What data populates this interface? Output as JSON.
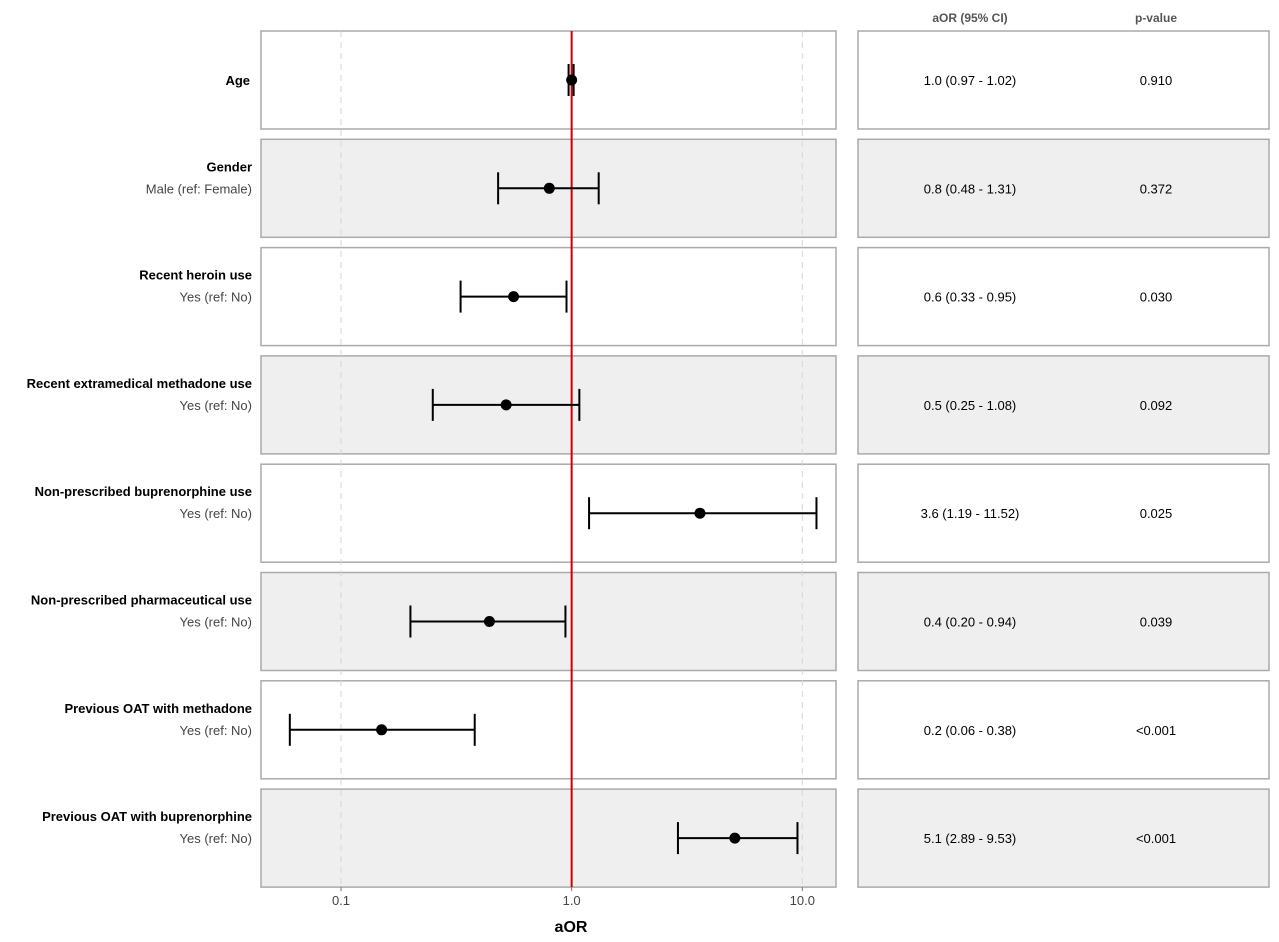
{
  "chart_data": {
    "type": "forest",
    "xlabel": "aOR",
    "x_scale": "log10",
    "xlim": [
      0.045,
      14
    ],
    "x_ticks": [
      0.1,
      1.0,
      10.0
    ],
    "x_tick_labels": [
      "0.1",
      "1.0",
      "10.0"
    ],
    "reference_line": 1.0,
    "reference_color": "#cc0000",
    "table_headers": [
      "aOR (95% CI)",
      "p-value"
    ],
    "rows": [
      {
        "variable": "Age",
        "level": "",
        "aor": 1.0,
        "lower": 0.97,
        "upper": 1.02,
        "ci_text": "1.0 (0.97 - 1.02)",
        "p": "0.910"
      },
      {
        "variable": "Gender",
        "level": "Male (ref: Female)",
        "aor": 0.8,
        "lower": 0.48,
        "upper": 1.31,
        "ci_text": "0.8 (0.48 - 1.31)",
        "p": "0.372"
      },
      {
        "variable": "Recent heroin use",
        "level": "Yes (ref: No)",
        "aor": 0.56,
        "lower": 0.33,
        "upper": 0.95,
        "ci_text": "0.6 (0.33 - 0.95)",
        "p": "0.030"
      },
      {
        "variable": "Recent extramedical methadone use",
        "level": "Yes (ref: No)",
        "aor": 0.52,
        "lower": 0.25,
        "upper": 1.08,
        "ci_text": "0.5 (0.25 - 1.08)",
        "p": "0.092"
      },
      {
        "variable": "Non-prescribed buprenorphine use",
        "level": "Yes (ref: No)",
        "aor": 3.6,
        "lower": 1.19,
        "upper": 11.52,
        "ci_text": "3.6 (1.19 - 11.52)",
        "p": "0.025"
      },
      {
        "variable": "Non-prescribed pharmaceutical use",
        "level": "Yes (ref: No)",
        "aor": 0.44,
        "lower": 0.2,
        "upper": 0.94,
        "ci_text": "0.4 (0.20 - 0.94)",
        "p": "0.039"
      },
      {
        "variable": "Previous OAT with methadone",
        "level": "Yes (ref: No)",
        "aor": 0.15,
        "lower": 0.06,
        "upper": 0.38,
        "ci_text": "0.2 (0.06 - 0.38)",
        "p": "<0.001"
      },
      {
        "variable": "Previous OAT with buprenorphine",
        "level": "Yes (ref: No)",
        "aor": 5.1,
        "lower": 2.89,
        "upper": 9.53,
        "ci_text": "5.1 (2.89 - 9.53)",
        "p": "<0.001"
      }
    ]
  }
}
